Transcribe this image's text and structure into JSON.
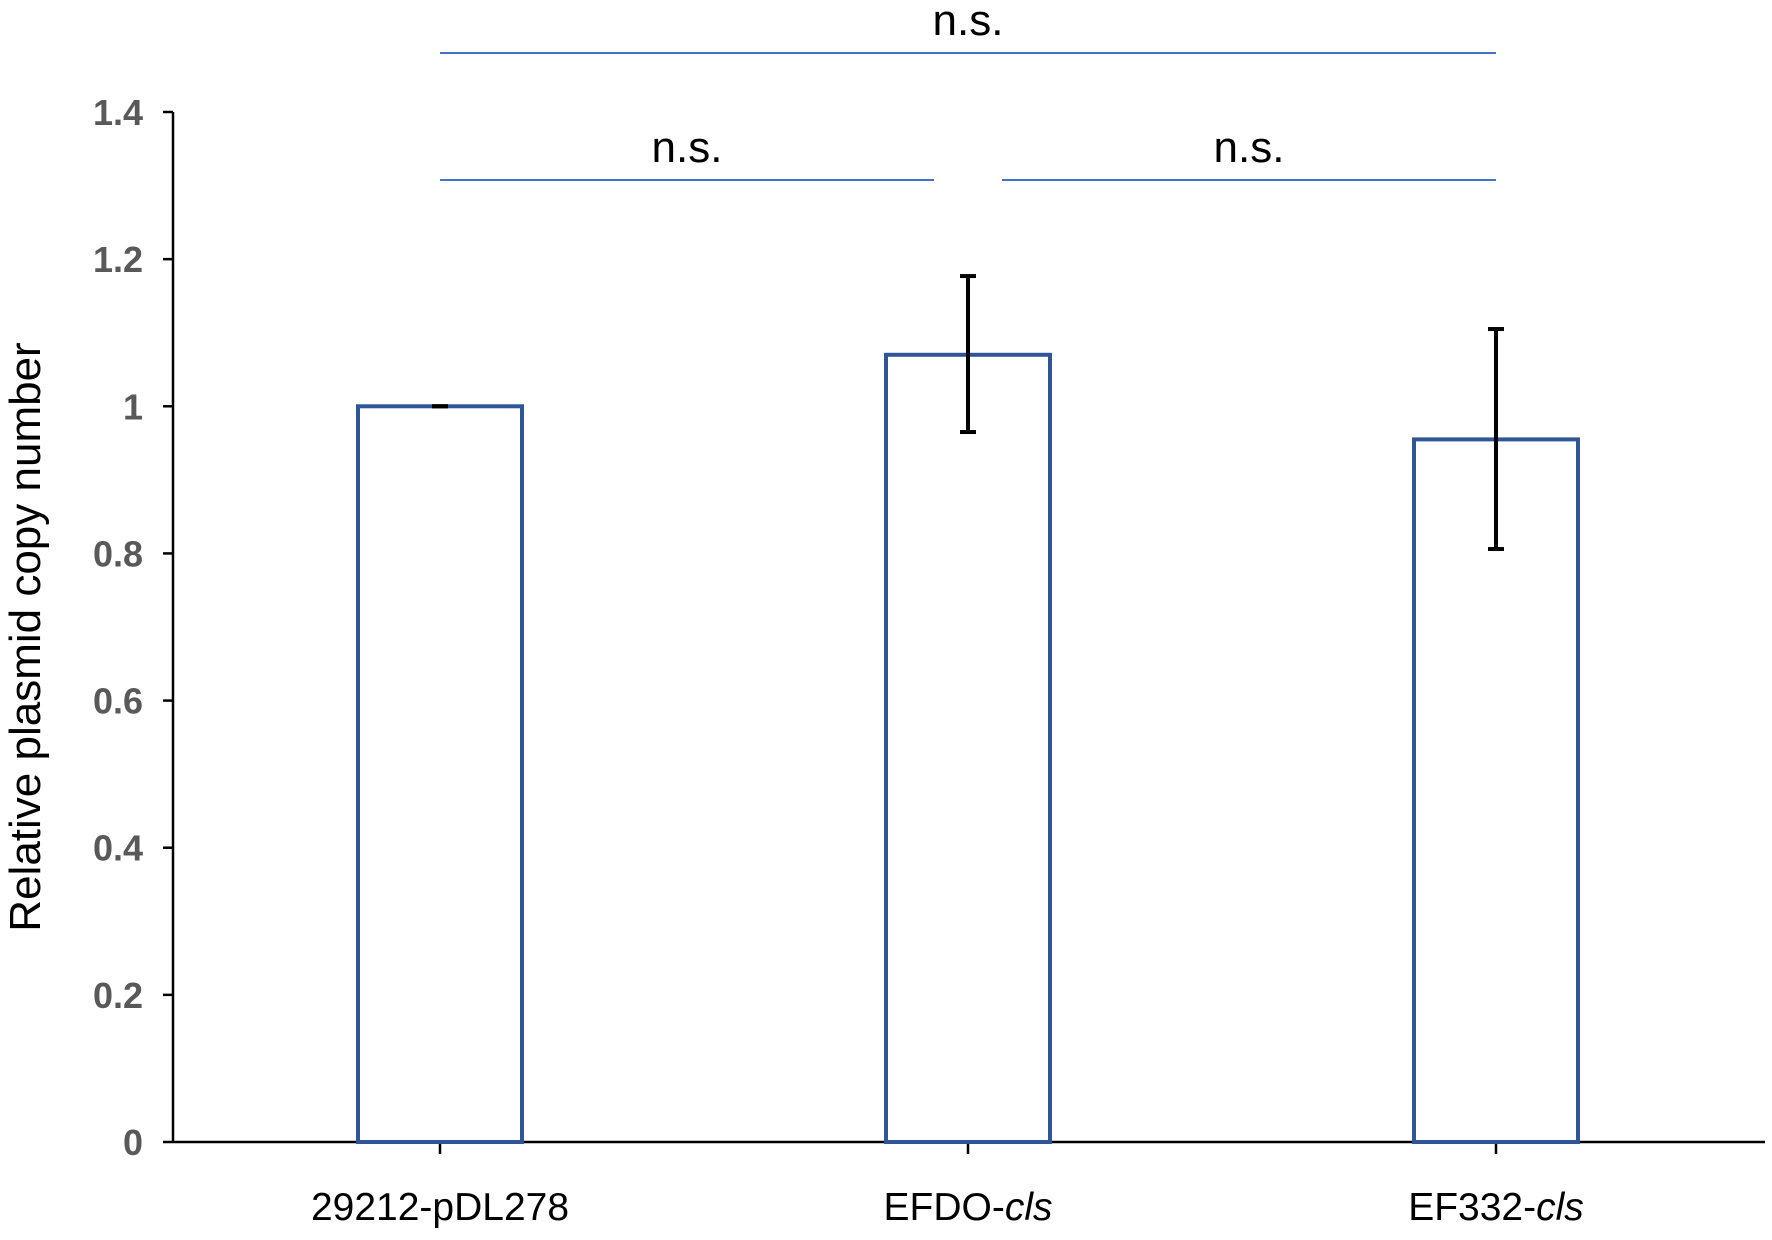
{
  "chart_data": {
    "type": "bar",
    "categories": [
      {
        "prefix": "29212-pDL278",
        "italic": ""
      },
      {
        "prefix": "EFDO-",
        "italic": "cls"
      },
      {
        "prefix": "EF332-",
        "italic": "cls"
      }
    ],
    "values": [
      1.0,
      1.07,
      0.955
    ],
    "error_bars": [
      {
        "low": 1.0,
        "high": 1.0
      },
      {
        "low": 0.965,
        "high": 1.177
      },
      {
        "low": 0.806,
        "high": 1.105
      }
    ],
    "title": "",
    "xlabel": "",
    "ylabel": "Relative plasmid copy number",
    "ylim": [
      0,
      1.4
    ],
    "yticks": [
      "0",
      "0.2",
      "0.4",
      "0.6",
      "0.8",
      "1",
      "1.2",
      "1.4"
    ],
    "grid": false,
    "legend": "none",
    "significance": [
      {
        "from": 0,
        "to": 1,
        "label": "n.s.",
        "level": 1
      },
      {
        "from": 1,
        "to": 2,
        "label": "n.s.",
        "level": 1
      },
      {
        "from": 0,
        "to": 2,
        "label": "n.s.",
        "level": 2
      }
    ],
    "colors": {
      "bar_edge": "#2f5597",
      "bar_fill": "#ffffff",
      "sig_line": "#4472c4",
      "error_bar": "#000000",
      "axis": "#000000",
      "tick_label": "#595959"
    }
  }
}
